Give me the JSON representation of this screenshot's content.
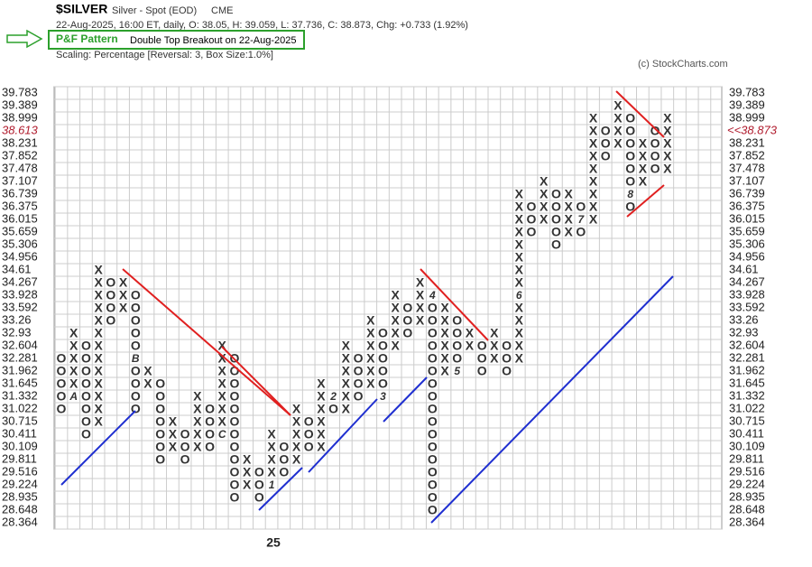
{
  "chart_data": {
    "type": "point_and_figure",
    "symbol": "$SILVER",
    "name": "Silver - Spot (EOD)",
    "exchange": "CME",
    "quote": "22-Aug-2025, 16:00 ET, daily, O: 38.05, H: 39.059, L: 37.736, C: 38.873, Chg: +0.733 (1.92%)",
    "pattern_title": "P&F Pattern",
    "pattern": "Double Top Breakout on 22-Aug-2025",
    "scaling": "Scaling: Percentage [Reversal: 3, Box Size:1.0%]",
    "credit": "(c) StockCharts.com",
    "log_scale": true,
    "ylim": [
      28.364,
      39.783
    ],
    "yticks": [
      39.783,
      39.389,
      38.999,
      38.613,
      38.231,
      37.852,
      37.478,
      37.107,
      36.739,
      36.375,
      36.015,
      35.659,
      35.306,
      34.956,
      34.61,
      34.267,
      33.928,
      33.592,
      33.26,
      32.93,
      32.604,
      32.281,
      31.962,
      31.645,
      31.332,
      31.022,
      30.715,
      30.411,
      30.109,
      29.811,
      29.516,
      29.224,
      28.935,
      28.648,
      28.364
    ],
    "current_level": 38.613,
    "last_price_label": "<<38.873",
    "x_color": "#000000",
    "o_color": "#b01c2e",
    "mark_color": "#8b1a3b",
    "last_column_color": "#2ca02c",
    "columns": [
      {
        "kind": "O",
        "high": 32.281,
        "low": 31.022
      },
      {
        "kind": "X",
        "high": 32.93,
        "low": 31.332,
        "mark": {
          "at": 31.332,
          "label": "A"
        }
      },
      {
        "kind": "O",
        "high": 32.604,
        "low": 30.411
      },
      {
        "kind": "X",
        "high": 34.61,
        "low": 30.715
      },
      {
        "kind": "O",
        "high": 34.267,
        "low": 33.26
      },
      {
        "kind": "X",
        "high": 34.267,
        "low": 33.592
      },
      {
        "kind": "O",
        "high": 33.928,
        "low": 31.022,
        "mark": {
          "at": 32.281,
          "label": "B"
        }
      },
      {
        "kind": "X",
        "high": 31.962,
        "low": 31.645
      },
      {
        "kind": "O",
        "high": 31.645,
        "low": 29.811
      },
      {
        "kind": "X",
        "high": 30.715,
        "low": 30.109
      },
      {
        "kind": "O",
        "high": 30.411,
        "low": 29.811
      },
      {
        "kind": "X",
        "high": 31.332,
        "low": 30.109
      },
      {
        "kind": "O",
        "high": 31.022,
        "low": 30.109
      },
      {
        "kind": "X",
        "high": 32.604,
        "low": 30.411,
        "mark": {
          "at": 30.411,
          "label": "C"
        }
      },
      {
        "kind": "O",
        "high": 32.281,
        "low": 28.935
      },
      {
        "kind": "X",
        "high": 29.811,
        "low": 29.224
      },
      {
        "kind": "O",
        "high": 29.516,
        "low": 28.935
      },
      {
        "kind": "X",
        "high": 30.411,
        "low": 29.224,
        "mark": {
          "at": 29.224,
          "label": "1"
        },
        "label": "25"
      },
      {
        "kind": "O",
        "high": 30.109,
        "low": 29.516
      },
      {
        "kind": "X",
        "high": 31.022,
        "low": 29.811
      },
      {
        "kind": "O",
        "high": 30.715,
        "low": 30.109
      },
      {
        "kind": "X",
        "high": 31.645,
        "low": 30.109
      },
      {
        "kind": "O",
        "high": 31.332,
        "low": 31.022,
        "mark": {
          "at": 31.332,
          "label": "2"
        }
      },
      {
        "kind": "X",
        "high": 32.604,
        "low": 31.022
      },
      {
        "kind": "O",
        "high": 32.281,
        "low": 31.332
      },
      {
        "kind": "X",
        "high": 33.26,
        "low": 31.645
      },
      {
        "kind": "O",
        "high": 32.93,
        "low": 31.332,
        "mark": {
          "at": 31.332,
          "label": "3"
        }
      },
      {
        "kind": "X",
        "high": 33.928,
        "low": 32.604
      },
      {
        "kind": "O",
        "high": 33.592,
        "low": 32.93
      },
      {
        "kind": "X",
        "high": 34.267,
        "low": 33.26
      },
      {
        "kind": "O",
        "high": 33.928,
        "low": 28.648,
        "mark": {
          "at": 33.928,
          "label": "4"
        }
      },
      {
        "kind": "X",
        "high": 33.592,
        "low": 31.962
      },
      {
        "kind": "O",
        "high": 33.26,
        "low": 31.962,
        "mark": {
          "at": 31.962,
          "label": "5"
        }
      },
      {
        "kind": "X",
        "high": 32.93,
        "low": 32.604
      },
      {
        "kind": "O",
        "high": 32.604,
        "low": 31.962
      },
      {
        "kind": "X",
        "high": 32.93,
        "low": 32.281
      },
      {
        "kind": "O",
        "high": 32.604,
        "low": 31.962
      },
      {
        "kind": "X",
        "high": 36.739,
        "low": 32.281,
        "mark": {
          "at": 33.928,
          "label": "6"
        }
      },
      {
        "kind": "O",
        "high": 36.375,
        "low": 35.659
      },
      {
        "kind": "X",
        "high": 37.107,
        "low": 36.015
      },
      {
        "kind": "O",
        "high": 36.739,
        "low": 35.306
      },
      {
        "kind": "X",
        "high": 36.739,
        "low": 35.659
      },
      {
        "kind": "O",
        "high": 36.375,
        "low": 35.659,
        "mark": {
          "at": 36.015,
          "label": "7"
        }
      },
      {
        "kind": "X",
        "high": 38.999,
        "low": 36.015
      },
      {
        "kind": "O",
        "high": 38.613,
        "low": 37.852
      },
      {
        "kind": "X",
        "high": 39.389,
        "low": 38.231
      },
      {
        "kind": "O",
        "high": 38.999,
        "low": 36.375,
        "mark": {
          "at": 36.739,
          "label": "8"
        }
      },
      {
        "kind": "X",
        "high": 38.231,
        "low": 37.107
      },
      {
        "kind": "O",
        "high": 38.613,
        "low": 37.478
      },
      {
        "kind": "X",
        "high": 38.999,
        "low": 37.478
      }
    ]
  }
}
